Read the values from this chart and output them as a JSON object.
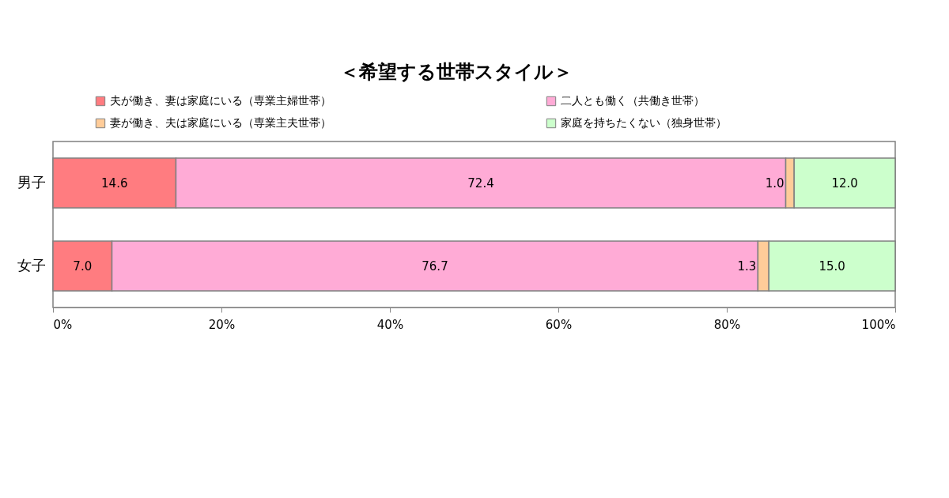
{
  "chart_data": {
    "type": "bar",
    "orientation": "horizontal",
    "stacked": true,
    "title": "＜希望する世帯スタイル＞",
    "categories": [
      "男子",
      "女子"
    ],
    "series": [
      {
        "name": "夫が働き、妻は家庭にいる（専業主婦世帯）",
        "color": "#ff7c80",
        "values": [
          14.6,
          7.0
        ],
        "value_labels": [
          "14.6",
          "7.0"
        ]
      },
      {
        "name": "二人とも働く（共働き世帯）",
        "color": "#ffabd6",
        "values": [
          72.4,
          76.7
        ],
        "value_labels": [
          "72.4",
          "76.7"
        ]
      },
      {
        "name": "妻が働き、夫は家庭にいる（専業主夫世帯）",
        "color": "#ffcc99",
        "values": [
          1.0,
          1.3
        ],
        "value_labels": [
          "1.0",
          "1.3"
        ]
      },
      {
        "name": "家庭を持ちたくない（独身世帯）",
        "color": "#ccffcc",
        "values": [
          12.0,
          15.0
        ],
        "value_labels": [
          "12.0",
          "15.0"
        ]
      }
    ],
    "xlim": [
      0,
      100
    ],
    "xticks": [
      {
        "value": 0,
        "label": "0%"
      },
      {
        "value": 20,
        "label": "20%"
      },
      {
        "value": 40,
        "label": "40%"
      },
      {
        "value": 60,
        "label": "60%"
      },
      {
        "value": 80,
        "label": "80%"
      },
      {
        "value": 100,
        "label": "100%"
      }
    ],
    "legend": "top",
    "grid": false
  }
}
